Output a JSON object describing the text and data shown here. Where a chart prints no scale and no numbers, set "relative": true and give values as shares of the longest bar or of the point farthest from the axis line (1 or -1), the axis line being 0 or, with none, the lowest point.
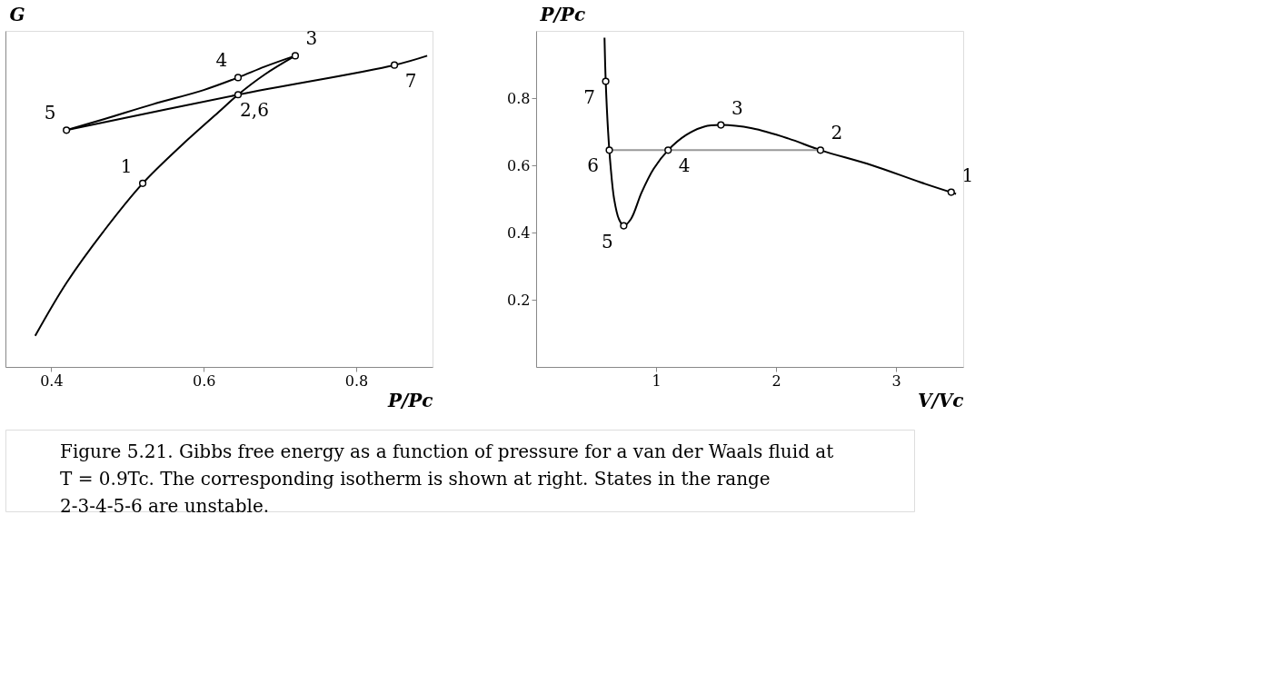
{
  "chart_data": [
    {
      "type": "line",
      "xlabel": "P/Pc",
      "ylabel": "G",
      "relative": true,
      "xlim": [
        0.34,
        0.9
      ],
      "xticks": [
        0.4,
        0.6,
        0.8
      ],
      "grid": false,
      "line_style": "solid",
      "series": [
        {
          "type": "line",
          "color": "#000000",
          "x": [
            0.379,
            0.42,
            0.47,
            0.52,
            0.57,
            0.62,
            0.645,
            0.68,
            0.72
          ],
          "values": [
            0.1,
            0.27,
            0.44,
            0.59,
            0.71,
            0.82,
            0.875,
            0.94,
            1.0
          ]
        },
        {
          "type": "line",
          "color": "#000000",
          "x": [
            0.72,
            0.68,
            0.645,
            0.6,
            0.533,
            0.47,
            0.42
          ],
          "values": [
            1.0,
            0.965,
            0.93,
            0.89,
            0.844,
            0.797,
            0.761
          ]
        },
        {
          "type": "line",
          "color": "#000000",
          "x": [
            0.42,
            0.645,
            0.85,
            0.893
          ],
          "values": [
            0.761,
            0.875,
            0.97,
            1.0
          ]
        },
        {
          "type": "scatter",
          "marker": "circle",
          "color": "#000000",
          "x": [
            0.42,
            0.52,
            0.645,
            0.645,
            0.72,
            0.85
          ],
          "values": [
            0.761,
            0.59,
            0.875,
            0.93,
            1.0,
            0.97
          ]
        }
      ],
      "annotations": [
        {
          "text": "5",
          "x": 0.42,
          "y": 0.761
        },
        {
          "text": "1",
          "x": 0.52,
          "y": 0.59
        },
        {
          "text": "2,6",
          "x": 0.645,
          "y": 0.875
        },
        {
          "text": "4",
          "x": 0.645,
          "y": 0.93
        },
        {
          "text": "3",
          "x": 0.72,
          "y": 1.0
        },
        {
          "text": "7",
          "x": 0.85,
          "y": 0.97
        },
        "Figure 5.21. Gibbs free energy as a function of pressure for a van der Waals fluid at T = 0.9Tc. The corresponding isotherm is shown at right. States in the range 2-3-4-5-6 are unstable."
      ]
    },
    {
      "type": "line",
      "xlabel": "V/Vc",
      "ylabel": "P/Pc",
      "xlim": [
        0,
        3.56
      ],
      "xticks": [
        1,
        2,
        3
      ],
      "ylim": [
        0,
        1.0
      ],
      "yticks": [
        0.2,
        0.4,
        0.6,
        0.8
      ],
      "grid": false,
      "line_style": "solid",
      "series": [
        {
          "type": "line",
          "color": "#000000",
          "x": [
            0.57,
            0.58,
            0.6,
            0.62,
            0.65,
            0.69,
            0.73,
            0.79,
            0.88,
            0.98,
            1.1,
            1.25,
            1.4,
            1.54,
            1.8,
            2.1,
            2.37,
            2.8,
            3.2,
            3.5
          ],
          "values": [
            0.98,
            0.85,
            0.7,
            0.6,
            0.5,
            0.44,
            0.42,
            0.44,
            0.52,
            0.59,
            0.645,
            0.69,
            0.715,
            0.72,
            0.71,
            0.68,
            0.645,
            0.6,
            0.55,
            0.515
          ]
        },
        {
          "type": "line",
          "color": "#999999",
          "x": [
            0.61,
            2.37
          ],
          "values": [
            0.645,
            0.645
          ]
        },
        {
          "type": "scatter",
          "marker": "circle",
          "color": "#000000",
          "x": [
            3.46,
            2.37,
            1.54,
            1.1,
            0.73,
            0.61,
            0.58
          ],
          "values": [
            0.52,
            0.645,
            0.72,
            0.645,
            0.42,
            0.645,
            0.85
          ]
        }
      ],
      "annotations": [
        {
          "text": "1",
          "x": 3.46,
          "y": 0.52
        },
        {
          "text": "2",
          "x": 2.37,
          "y": 0.645
        },
        {
          "text": "3",
          "x": 1.54,
          "y": 0.72
        },
        {
          "text": "4",
          "x": 1.1,
          "y": 0.645
        },
        {
          "text": "5",
          "x": 0.73,
          "y": 0.42
        },
        {
          "text": "6",
          "x": 0.61,
          "y": 0.645
        },
        {
          "text": "7",
          "x": 0.58,
          "y": 0.85
        }
      ]
    }
  ]
}
